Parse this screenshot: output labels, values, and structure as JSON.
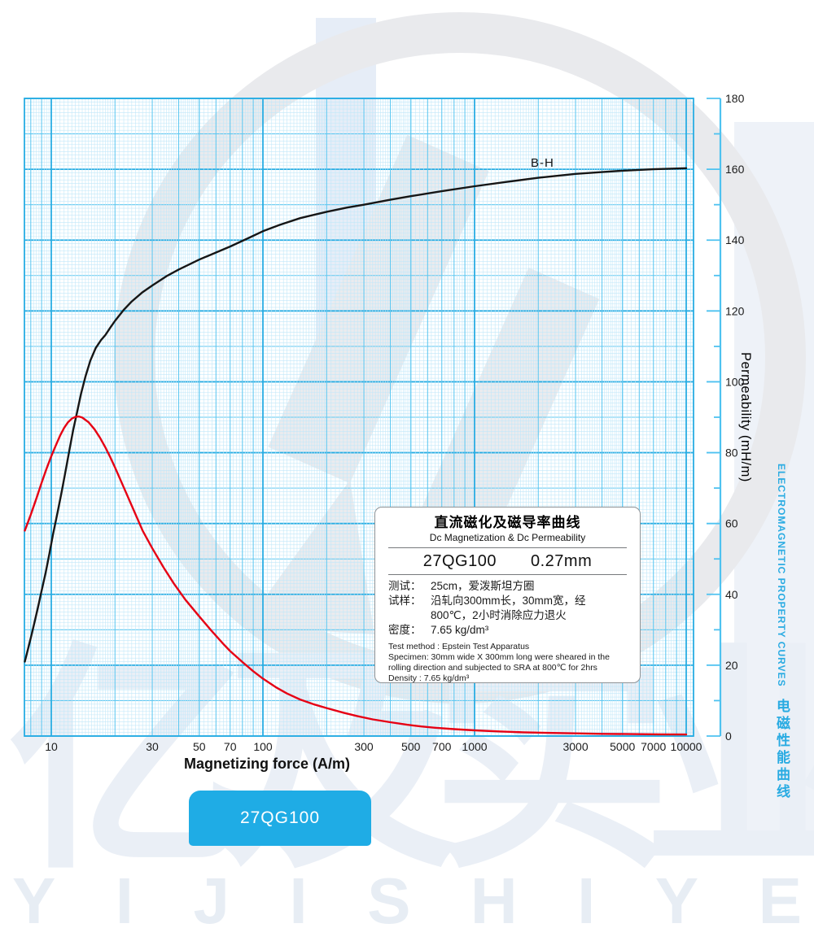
{
  "colors": {
    "accent_cyan": "#29abe2",
    "grid_major": "#29ade3",
    "grid_mid": "#5fc8f1",
    "grid_fine": "#c2e8f9",
    "curve_bh": "#161616",
    "curve_perm": "#e60014",
    "badge_bg": "#1face5",
    "watermark": "#e9eef5"
  },
  "chart_data": {
    "type": "line",
    "title": "直流磁化及磁导率曲线",
    "subtitle": "Dc Magnetization & Dc Permeability",
    "xlabel": "Magnetizing force (A/m)",
    "ylabel": "Permeability (mH/m)",
    "x_scale": "log",
    "x_range": [
      7.5,
      10800
    ],
    "ylim": [
      0,
      180
    ],
    "grid": true,
    "x_ticks": [
      10,
      30,
      50,
      70,
      100,
      300,
      500,
      700,
      1000,
      3000,
      5000,
      7000,
      10000
    ],
    "y_ticks": [
      0,
      20,
      40,
      60,
      80,
      100,
      120,
      140,
      160,
      180
    ],
    "y_minor_step": 10,
    "legend_position": "inline-label",
    "series": [
      {
        "name": "B-H",
        "color": "#161616",
        "points": [
          [
            7.5,
            21
          ],
          [
            7.8,
            25
          ],
          [
            8.1,
            29
          ],
          [
            8.4,
            33
          ],
          [
            8.7,
            37
          ],
          [
            9.0,
            41
          ],
          [
            9.4,
            46
          ],
          [
            9.8,
            51.5
          ],
          [
            10.2,
            57
          ],
          [
            10.7,
            63
          ],
          [
            11.2,
            69
          ],
          [
            11.7,
            75
          ],
          [
            12.2,
            81
          ],
          [
            12.7,
            86.5
          ],
          [
            13.2,
            91
          ],
          [
            13.8,
            96.5
          ],
          [
            14.5,
            101.5
          ],
          [
            15.3,
            106
          ],
          [
            16.2,
            109.5
          ],
          [
            17.2,
            111.8
          ],
          [
            18,
            113.2
          ],
          [
            19,
            115.3
          ],
          [
            20,
            117.2
          ],
          [
            22,
            120.3
          ],
          [
            24,
            122.7
          ],
          [
            27,
            125.3
          ],
          [
            30,
            127.2
          ],
          [
            35,
            129.8
          ],
          [
            40,
            131.7
          ],
          [
            50,
            134.5
          ],
          [
            60,
            136.5
          ],
          [
            70,
            138.2
          ],
          [
            85,
            140.5
          ],
          [
            100,
            142.5
          ],
          [
            120,
            144.3
          ],
          [
            150,
            146.2
          ],
          [
            200,
            148
          ],
          [
            250,
            149.2
          ],
          [
            300,
            150
          ],
          [
            400,
            151.4
          ],
          [
            500,
            152.4
          ],
          [
            700,
            153.8
          ],
          [
            1000,
            155.2
          ],
          [
            1400,
            156.4
          ],
          [
            2000,
            157.6
          ],
          [
            3000,
            158.7
          ],
          [
            4000,
            159.2
          ],
          [
            5000,
            159.6
          ],
          [
            7000,
            160
          ],
          [
            10000,
            160.3
          ]
        ]
      },
      {
        "name": "Permeability",
        "color": "#e60014",
        "points": [
          [
            7.5,
            58
          ],
          [
            8,
            62.5
          ],
          [
            8.5,
            67
          ],
          [
            9,
            71.5
          ],
          [
            9.5,
            75.5
          ],
          [
            10,
            79
          ],
          [
            10.5,
            82
          ],
          [
            11,
            84.8
          ],
          [
            11.5,
            87
          ],
          [
            12,
            88.6
          ],
          [
            12.5,
            89.6
          ],
          [
            13,
            90.1
          ],
          [
            13.5,
            90.2
          ],
          [
            14,
            89.9
          ],
          [
            15,
            88.6
          ],
          [
            16,
            86.6
          ],
          [
            17,
            84.2
          ],
          [
            18,
            81.5
          ],
          [
            19,
            78.7
          ],
          [
            20,
            75.8
          ],
          [
            22,
            70.2
          ],
          [
            24,
            65
          ],
          [
            27,
            58
          ],
          [
            30,
            53
          ],
          [
            34,
            47.5
          ],
          [
            38,
            43
          ],
          [
            43,
            38.5
          ],
          [
            50,
            33.8
          ],
          [
            57,
            29.8
          ],
          [
            65,
            26
          ],
          [
            70,
            24
          ],
          [
            80,
            20.9
          ],
          [
            90,
            18.3
          ],
          [
            100,
            16.2
          ],
          [
            115,
            13.8
          ],
          [
            130,
            12
          ],
          [
            150,
            10.3
          ],
          [
            175,
            8.9
          ],
          [
            200,
            7.9
          ],
          [
            240,
            6.6
          ],
          [
            280,
            5.6
          ],
          [
            330,
            4.7
          ],
          [
            400,
            3.9
          ],
          [
            480,
            3.2
          ],
          [
            560,
            2.7
          ],
          [
            650,
            2.35
          ],
          [
            800,
            1.95
          ],
          [
            1000,
            1.6
          ],
          [
            1300,
            1.3
          ],
          [
            1700,
            1.05
          ],
          [
            2200,
            0.9
          ],
          [
            3000,
            0.75
          ],
          [
            4000,
            0.63
          ],
          [
            5500,
            0.55
          ],
          [
            7500,
            0.48
          ],
          [
            10000,
            0.43
          ]
        ]
      }
    ]
  },
  "curve_label_bh": "B-H",
  "axis": {
    "x_title": "Magnetizing force (A/m)",
    "y_title": "Permeability (mH/m)"
  },
  "side_text": {
    "en": "ELECTROMAGNETIC PROPERTY CURVES",
    "zh": "电磁性能曲线"
  },
  "info_box": {
    "title": "直流磁化及磁导率曲线",
    "subtitle": "Dc Magnetization & Dc Permeability",
    "model": "27QG100",
    "thickness": "0.27mm",
    "specs": [
      {
        "label": "测试：",
        "value": "25cm，爱泼斯坦方圈"
      },
      {
        "label": "试样：",
        "value": "沿轧向300mm长，30mm宽，经",
        "value2": "800℃，2小时消除应力退火"
      },
      {
        "label": "密度：",
        "value": "7.65 kg/dm³"
      }
    ],
    "en_lines": [
      "Test method : Epstein Test Apparatus",
      "Specimen: 30mm wide X 300mm long were sheared in the rolling direction and subjected to SRA at 800℃ for 2hrs",
      "Density : 7.65 kg/dm³"
    ]
  },
  "badge": {
    "label": "27QG100"
  },
  "watermark": {
    "letters": "YIJISHIYE",
    "cjk": "亿及实业"
  }
}
